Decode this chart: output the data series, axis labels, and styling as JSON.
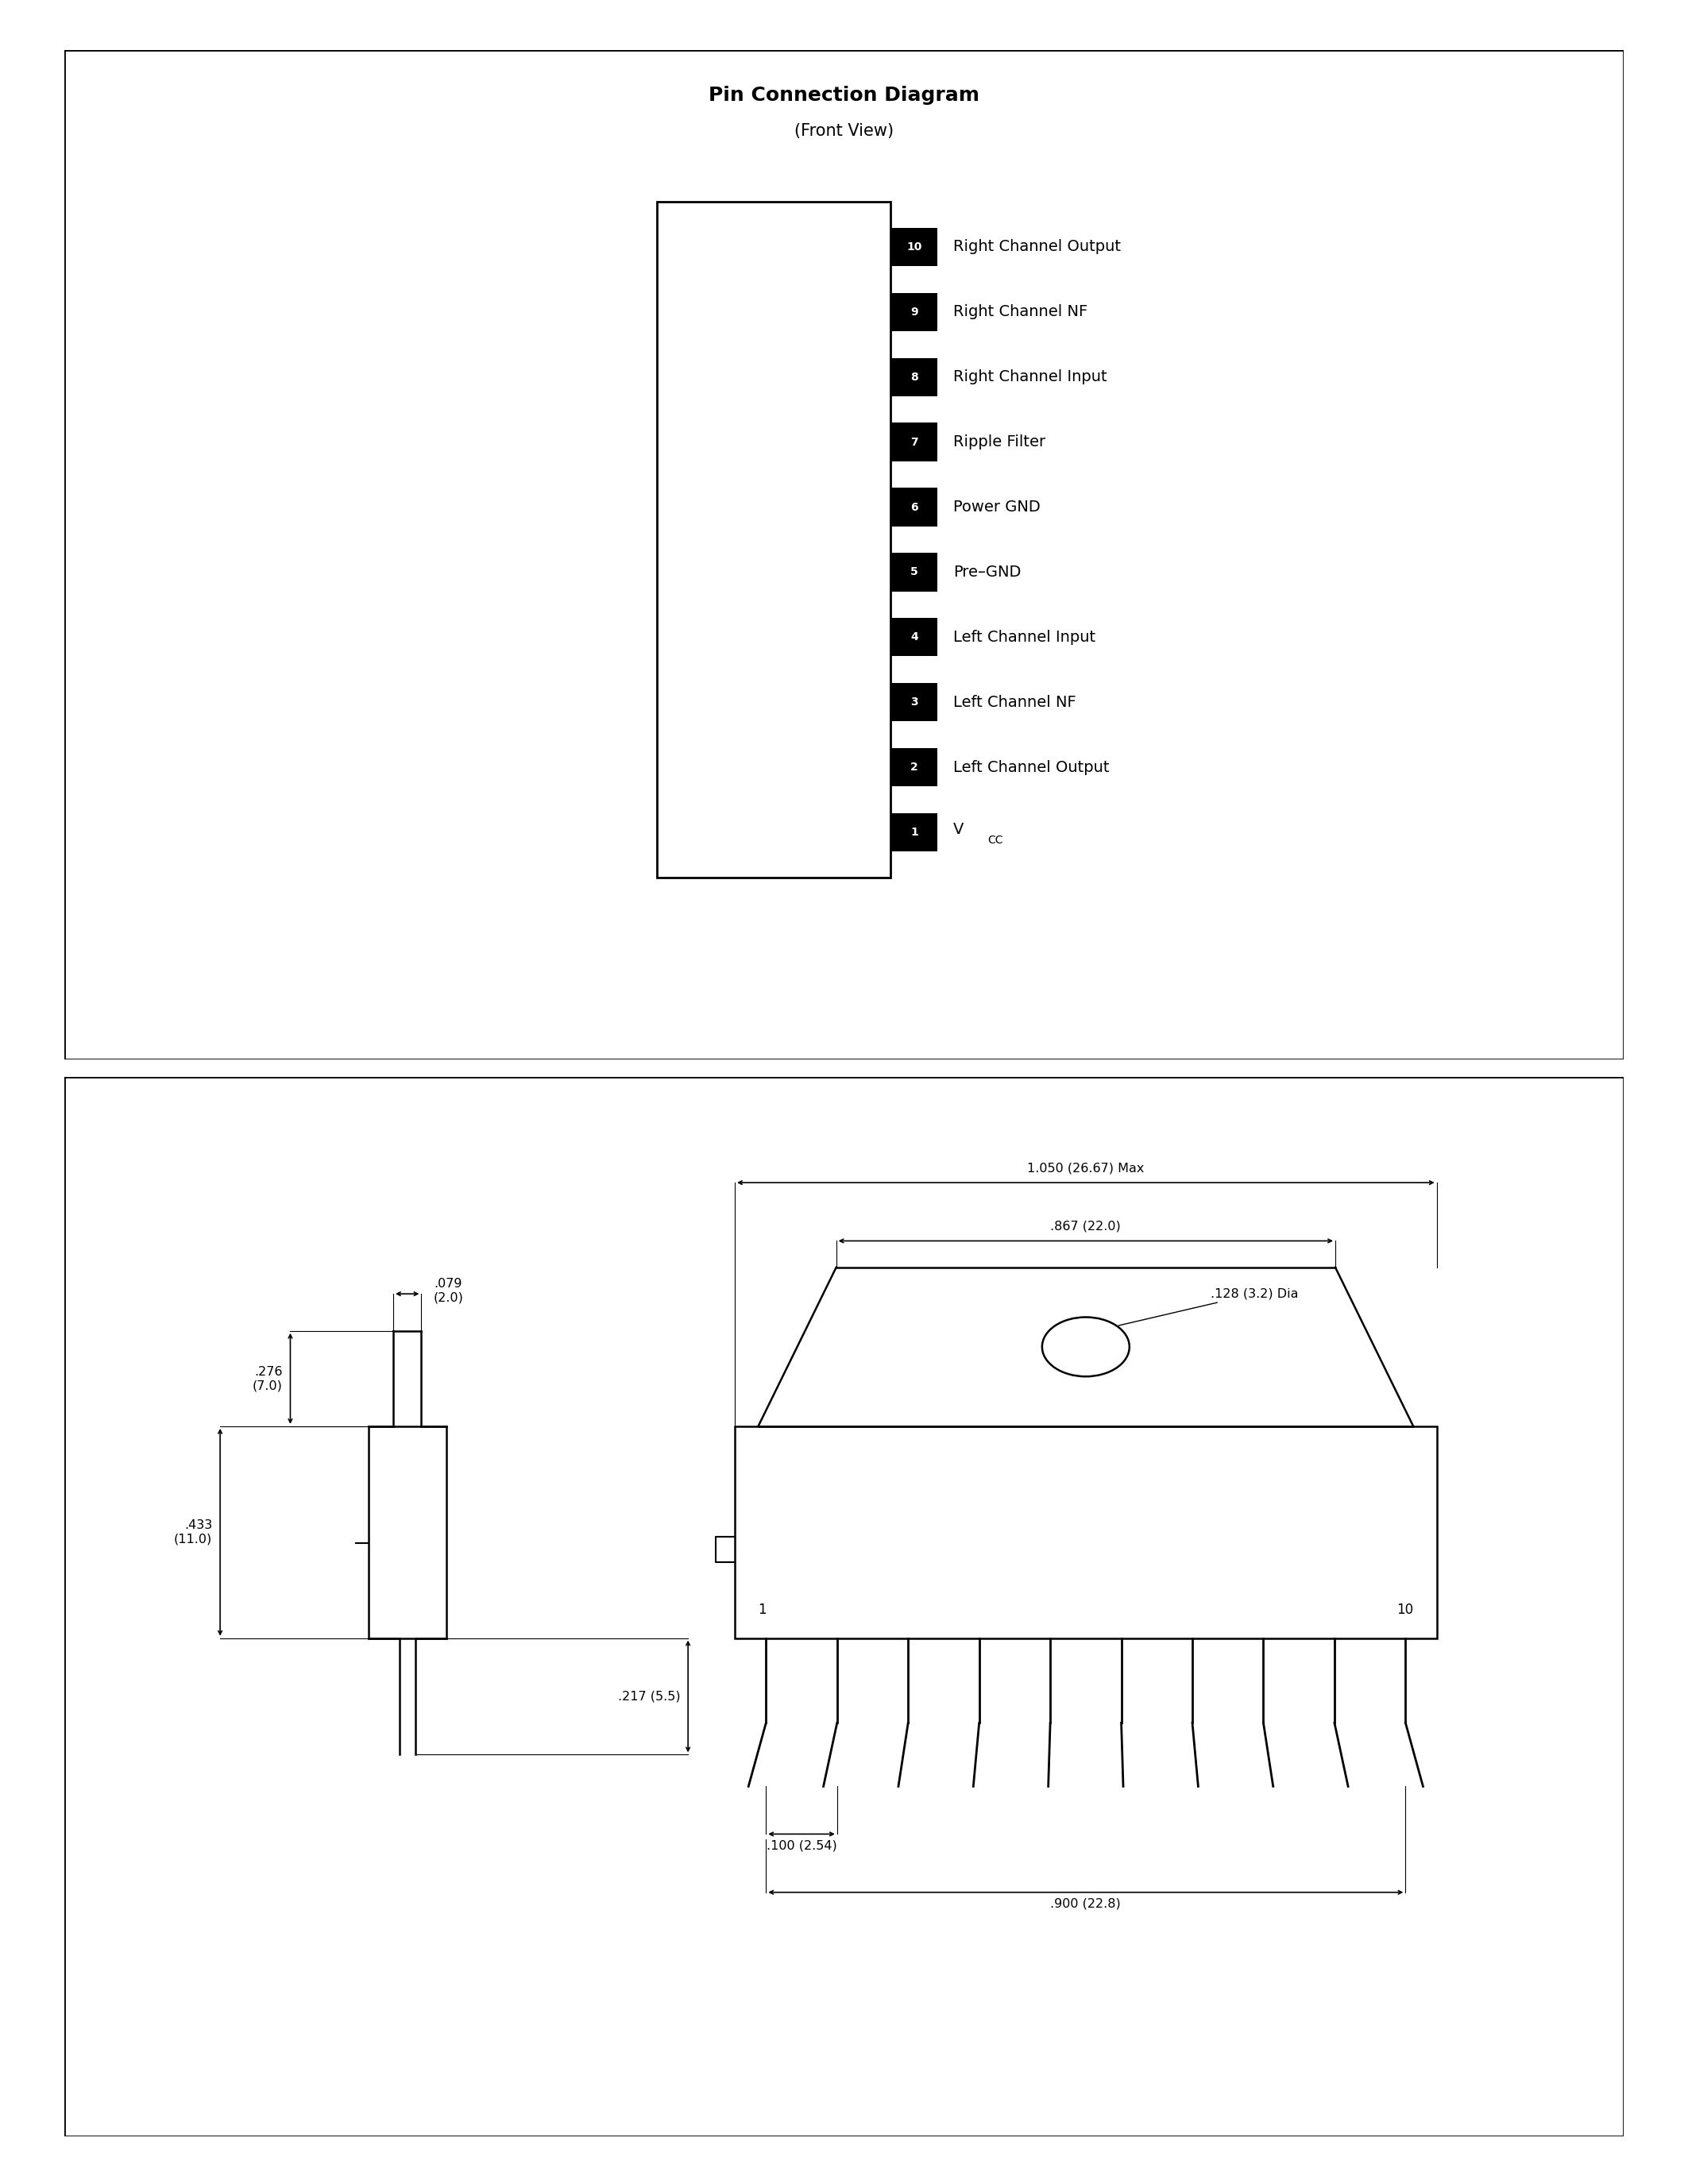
{
  "title1": "Pin Connection Diagram",
  "subtitle1": "(Front View)",
  "pins": [
    {
      "num": 10,
      "label": "Right Channel Output"
    },
    {
      "num": 9,
      "label": "Right Channel NF"
    },
    {
      "num": 8,
      "label": "Right Channel Input"
    },
    {
      "num": 7,
      "label": "Ripple Filter"
    },
    {
      "num": 6,
      "label": "Power GND"
    },
    {
      "num": 5,
      "label": "Pre–GND"
    },
    {
      "num": 4,
      "label": "Left Channel Input"
    },
    {
      "num": 3,
      "label": "Left Channel NF"
    },
    {
      "num": 2,
      "label": "Left Channel Output"
    },
    {
      "num": 1,
      "label": "V"
    }
  ],
  "vcc_sub": "CC",
  "bg_color": "#ffffff",
  "line_color": "#000000",
  "box_fill": "#000000",
  "text_color_white": "#ffffff",
  "text_color_black": "#000000"
}
